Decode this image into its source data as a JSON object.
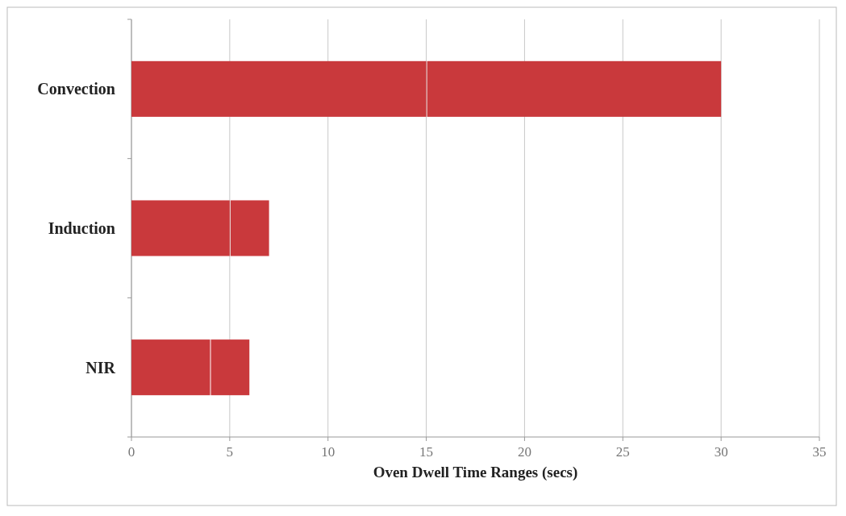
{
  "chart_data": {
    "type": "bar",
    "orientation": "horizontal",
    "stacked": true,
    "categories": [
      "Convection",
      "Induction",
      "NIR"
    ],
    "series": [
      {
        "color": "#c9393c",
        "values": [
          15,
          5,
          4
        ]
      },
      {
        "color": "#c9393c",
        "values": [
          15,
          2,
          2
        ]
      }
    ],
    "xlabel": "Oven Dwell Time Ranges (secs)",
    "xlim": [
      0,
      35
    ],
    "xticks": [
      0,
      5,
      10,
      15,
      20,
      25,
      30,
      35
    ],
    "grid": "x"
  }
}
